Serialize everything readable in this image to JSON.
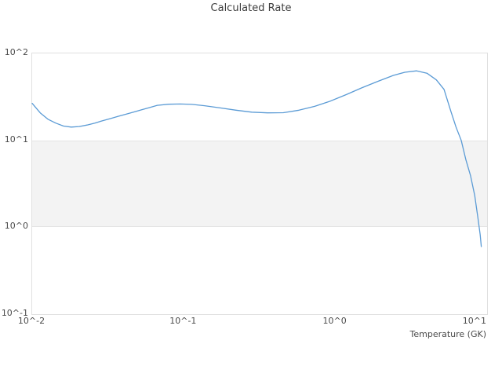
{
  "title": "Calculated Rate",
  "axes": {
    "x_label": "Temperature (GK)",
    "x_ticks": [
      "10^-2",
      "10^-1",
      "10^0",
      "10^1"
    ],
    "y_ticks": [
      "10^2",
      "10^1",
      "10^0",
      "10^-1"
    ]
  },
  "colors": {
    "line": "#5b9bd5",
    "band_fill": "#f3f3f3",
    "band_edge": "#e3e3e3",
    "plot_border": "#e0e0e0",
    "title_text": "#3d3d3d",
    "tick_text": "#4a4a4a"
  },
  "chart_data": {
    "type": "line",
    "title": "Calculated Rate",
    "xlabel": "Temperature (GK)",
    "ylabel": "",
    "x_scale": "log",
    "y_scale": "log",
    "xlim": [
      0.01,
      10
    ],
    "ylim": [
      0.1,
      100
    ],
    "x_tick_values": [
      0.01,
      0.1,
      1,
      10
    ],
    "y_tick_values": [
      100,
      10,
      1,
      0.1
    ],
    "grid": false,
    "legend": "none",
    "band": {
      "y_from": 1,
      "y_to": 10
    },
    "series": [
      {
        "name": "calculated-rate",
        "x": [
          0.01,
          0.0113,
          0.0127,
          0.0143,
          0.0161,
          0.0181,
          0.0204,
          0.023,
          0.0259,
          0.0291,
          0.0328,
          0.0369,
          0.0416,
          0.0468,
          0.0527,
          0.0593,
          0.0668,
          0.0795,
          0.0947,
          0.113,
          0.137,
          0.174,
          0.221,
          0.281,
          0.357,
          0.453,
          0.575,
          0.73,
          0.926,
          1.18,
          1.49,
          1.9,
          2.41,
          2.87,
          3.43,
          4.01,
          4.63,
          5.2,
          5.77,
          6.24,
          6.75,
          7.25,
          7.78,
          8.28,
          8.69,
          9.0,
          9.16
        ],
        "y": [
          26.6,
          20.7,
          17.5,
          15.8,
          14.6,
          14.2,
          14.4,
          15.0,
          15.8,
          16.8,
          17.8,
          18.9,
          20.0,
          21.2,
          22.5,
          23.8,
          25.3,
          26.0,
          26.2,
          25.9,
          25.0,
          23.6,
          22.2,
          21.1,
          20.7,
          20.8,
          22.2,
          24.6,
          28.3,
          33.6,
          40.1,
          47.7,
          55.9,
          60.7,
          63.0,
          59.2,
          49.6,
          38.6,
          21.6,
          14.2,
          10.0,
          5.95,
          3.92,
          2.33,
          1.3,
          0.82,
          0.6
        ]
      }
    ]
  }
}
